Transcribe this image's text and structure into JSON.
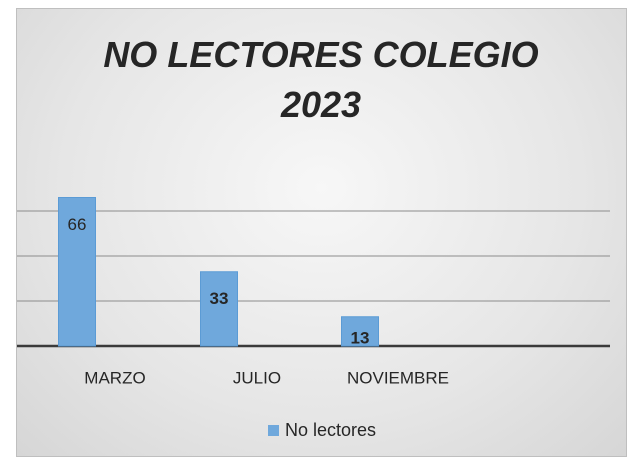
{
  "chart_data": {
    "type": "bar",
    "title": "NO LECTORES COLEGIO 2023",
    "categories": [
      "MARZO",
      "JULIO",
      "NOVIEMBRE"
    ],
    "series": [
      {
        "name": "No lectores",
        "color": "#6fa8dc",
        "values": [
          66,
          33,
          13
        ]
      }
    ],
    "ylim": [
      0,
      70
    ],
    "yticks": [
      0,
      20,
      40,
      60
    ],
    "grid": true,
    "legend": "bottom"
  }
}
